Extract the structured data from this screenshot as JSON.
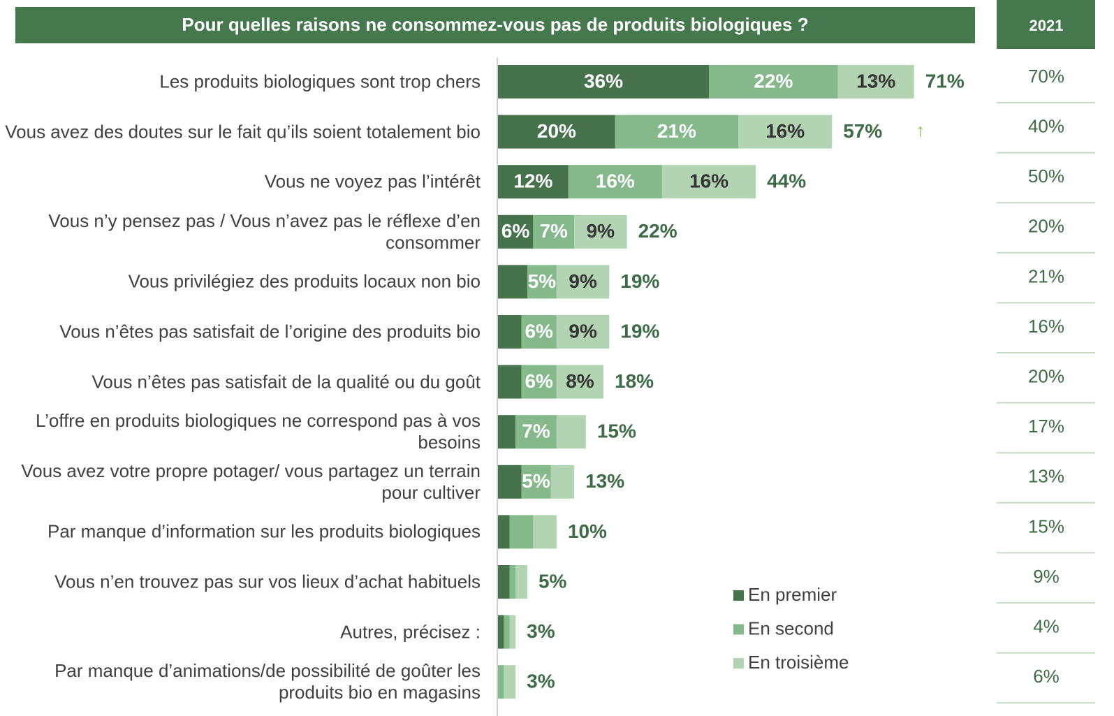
{
  "chart_data": {
    "type": "stacked-bar-horizontal",
    "title": "Pour quelles raisons ne consommez-vous pas de produits biologiques ?",
    "categories": [
      "Les produits biologiques sont trop chers",
      "Vous avez des doutes sur le fait qu’ils soient totalement bio",
      "Vous ne voyez pas l’intérêt",
      "Vous n’y pensez pas / Vous n’avez pas le réflexe d’en consommer",
      "Vous privilégiez des produits locaux non bio",
      "Vous n’êtes pas satisfait de l’origine des produits bio",
      "Vous n’êtes pas satisfait de la qualité ou du goût",
      "L’offre en produits biologiques ne correspond pas à vos besoins",
      "Vous avez votre propre potager/ vous partagez un terrain pour cultiver",
      "Par manque d’information sur les produits biologiques",
      "Vous n’en trouvez pas sur vos lieux d’achat habituels",
      "Autres, précisez :",
      "Par manque d’animations/de possibilité de goûter les produits bio en magasins"
    ],
    "series": [
      {
        "name": "En premier",
        "color": "#46734c",
        "values": [
          36,
          20,
          12,
          6,
          5,
          4,
          4,
          3,
          4,
          2,
          2,
          1,
          0
        ],
        "value_labels": [
          "36%",
          "20%",
          "12%",
          "6%",
          null,
          null,
          null,
          null,
          null,
          null,
          null,
          null,
          null
        ]
      },
      {
        "name": "En second",
        "color": "#85b88b",
        "values": [
          22,
          21,
          16,
          7,
          5,
          6,
          6,
          7,
          5,
          4,
          1,
          1,
          1
        ],
        "value_labels": [
          "22%",
          "21%",
          "16%",
          "7%",
          "5%",
          "6%",
          "6%",
          "7%",
          "5%",
          null,
          null,
          null,
          null
        ]
      },
      {
        "name": "En troisième",
        "color": "#b3d4b3",
        "values": [
          13,
          16,
          16,
          9,
          9,
          9,
          8,
          5,
          4,
          4,
          2,
          1,
          2
        ],
        "value_labels": [
          "13%",
          "16%",
          "16%",
          "9%",
          "9%",
          "9%",
          "8%",
          null,
          null,
          null,
          null,
          null,
          null
        ]
      }
    ],
    "totals": [
      71,
      57,
      44,
      22,
      19,
      19,
      18,
      15,
      13,
      10,
      5,
      3,
      3
    ],
    "total_labels": [
      "71%",
      "57%",
      "44%",
      "22%",
      "19%",
      "19%",
      "18%",
      "15%",
      "13%",
      "10%",
      "5%",
      "3%",
      "3%"
    ],
    "trend_arrows": [
      null,
      "↑",
      null,
      null,
      null,
      null,
      null,
      null,
      null,
      null,
      null,
      null,
      null
    ],
    "comparison": {
      "title": "2021",
      "values": [
        70,
        40,
        50,
        20,
        21,
        16,
        20,
        17,
        13,
        15,
        9,
        4,
        6
      ],
      "value_labels": [
        "70%",
        "40%",
        "50%",
        "20%",
        "21%",
        "16%",
        "20%",
        "17%",
        "13%",
        "15%",
        "9%",
        "4%",
        "6%"
      ]
    }
  }
}
